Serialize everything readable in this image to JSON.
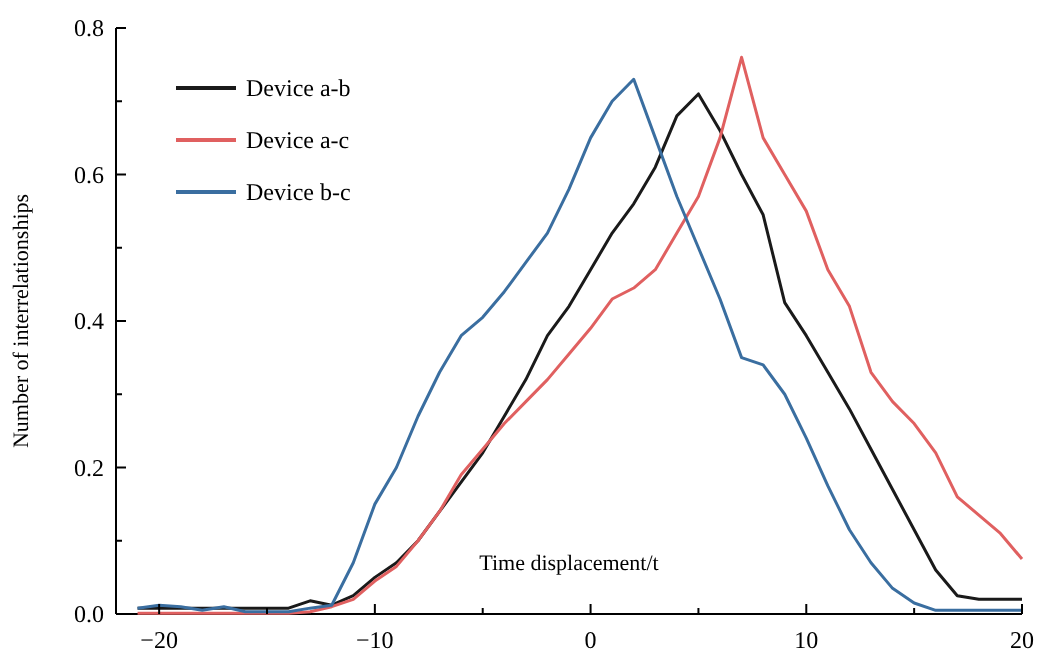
{
  "chart_data": {
    "type": "line",
    "xlabel": "Time displacement/t",
    "ylabel": "Number of interrelationships",
    "x": [
      -21,
      -20,
      -19,
      -18,
      -17,
      -16,
      -15,
      -14,
      -13,
      -12,
      -11,
      -10,
      -9,
      -8,
      -7,
      -6,
      -5,
      -4,
      -3,
      -2,
      -1,
      0,
      1,
      2,
      3,
      4,
      5,
      6,
      7,
      8,
      9,
      10,
      11,
      12,
      13,
      14,
      15,
      16,
      17,
      18,
      19,
      20
    ],
    "series": [
      {
        "name": "Device a-b",
        "color": "#1a1a1a",
        "values": [
          0.008,
          0.008,
          0.008,
          0.008,
          0.008,
          0.008,
          0.008,
          0.008,
          0.018,
          0.012,
          0.025,
          0.05,
          0.07,
          0.1,
          0.14,
          0.18,
          0.22,
          0.27,
          0.32,
          0.38,
          0.42,
          0.47,
          0.52,
          0.56,
          0.61,
          0.68,
          0.71,
          0.66,
          0.6,
          0.545,
          0.425,
          0.38,
          0.33,
          0.28,
          0.225,
          0.17,
          0.115,
          0.06,
          0.025,
          0.02,
          0.02,
          0.02
        ]
      },
      {
        "name": "Device a-c",
        "color": "#e06060",
        "values": [
          0.001,
          0.001,
          0.001,
          0.001,
          0.001,
          0.001,
          0.001,
          0.001,
          0.003,
          0.01,
          0.02,
          0.045,
          0.065,
          0.1,
          0.14,
          0.19,
          0.225,
          0.26,
          0.29,
          0.32,
          0.355,
          0.39,
          0.43,
          0.445,
          0.47,
          0.52,
          0.57,
          0.65,
          0.76,
          0.65,
          0.6,
          0.55,
          0.47,
          0.42,
          0.33,
          0.29,
          0.26,
          0.22,
          0.16,
          0.135,
          0.11,
          0.075
        ]
      },
      {
        "name": "Device b-c",
        "color": "#3a6ea0",
        "values": [
          0.008,
          0.012,
          0.01,
          0.005,
          0.01,
          0.003,
          0.003,
          0.003,
          0.008,
          0.012,
          0.07,
          0.15,
          0.2,
          0.27,
          0.33,
          0.38,
          0.405,
          0.44,
          0.48,
          0.52,
          0.58,
          0.65,
          0.7,
          0.73,
          0.65,
          0.57,
          0.5,
          0.43,
          0.35,
          0.34,
          0.3,
          0.24,
          0.175,
          0.115,
          0.07,
          0.035,
          0.015,
          0.005,
          0.005,
          0.005,
          0.005,
          0.005
        ]
      }
    ],
    "xlim": [
      -22,
      20
    ],
    "ylim": [
      0,
      0.8
    ],
    "xticks": [
      -20,
      {
        "value": -15,
        "label": null
      },
      -10,
      {
        "value": -5,
        "label": null
      },
      0,
      {
        "value": 5,
        "label": null
      },
      10,
      {
        "value": 15,
        "label": null
      },
      20
    ],
    "yticks": [
      {
        "value": 0,
        "label": "0.0"
      },
      {
        "value": 0.1,
        "label": null
      },
      0.2,
      {
        "value": 0.3,
        "label": null
      },
      0.4,
      {
        "value": 0.5,
        "label": null
      },
      0.6,
      {
        "value": 0.7,
        "label": null
      },
      0.8
    ],
    "legend": "top left",
    "grid": false,
    "marker": "none",
    "line_style": "solid"
  }
}
